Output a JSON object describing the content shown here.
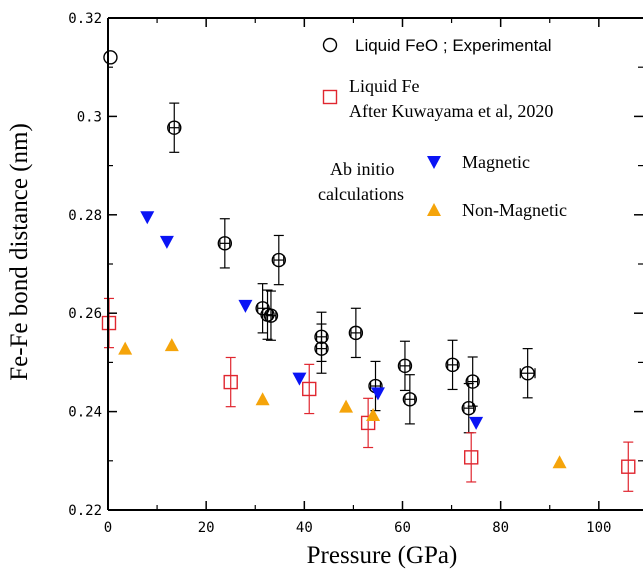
{
  "chart_data": {
    "type": "scatter",
    "xlabel": "Pressure (GPa)",
    "ylabel": "Fe-Fe bond distance (nm)",
    "xlim": [
      0,
      109
    ],
    "ylim": [
      0.22,
      0.32
    ],
    "x_ticks": [
      0,
      20,
      40,
      60,
      80,
      100
    ],
    "y_ticks": [
      0.22,
      0.24,
      0.26,
      0.28,
      0.3,
      0.32
    ],
    "x_tick_labels": [
      "0",
      "20",
      "40",
      "60",
      "80",
      "100"
    ],
    "y_tick_labels": [
      "0.22",
      "0.24",
      "0.26",
      "0.28",
      "0.3",
      "0.32"
    ],
    "grid": false,
    "legend_position": "top-right",
    "legend_group_label": [
      "Ab initio",
      "calculations"
    ],
    "series": [
      {
        "name": "Liquid FeO ; Experimental",
        "marker": "circle",
        "color": "#000000",
        "points": [
          {
            "x": 0.5,
            "y": 0.312,
            "xerr": 0,
            "yerr": 0
          },
          {
            "x": 13.5,
            "y": 0.2977,
            "xerr": 1.0,
            "yerr": 0.005
          },
          {
            "x": 23.8,
            "y": 0.2742,
            "xerr": 1.0,
            "yerr": 0.005
          },
          {
            "x": 31.5,
            "y": 0.261,
            "xerr": 1.0,
            "yerr": 0.005
          },
          {
            "x": 32.5,
            "y": 0.2597,
            "xerr": 1.0,
            "yerr": 0.005
          },
          {
            "x": 33.2,
            "y": 0.2595,
            "xerr": 1.0,
            "yerr": 0.005
          },
          {
            "x": 34.8,
            "y": 0.2708,
            "xerr": 1.0,
            "yerr": 0.005
          },
          {
            "x": 43.5,
            "y": 0.2552,
            "xerr": 1.0,
            "yerr": 0.005
          },
          {
            "x": 43.5,
            "y": 0.2528,
            "xerr": 1.0,
            "yerr": 0.005
          },
          {
            "x": 50.5,
            "y": 0.256,
            "xerr": 1.0,
            "yerr": 0.005
          },
          {
            "x": 54.5,
            "y": 0.2452,
            "xerr": 1.0,
            "yerr": 0.005
          },
          {
            "x": 60.5,
            "y": 0.2493,
            "xerr": 1.0,
            "yerr": 0.005
          },
          {
            "x": 61.5,
            "y": 0.2425,
            "xerr": 1.0,
            "yerr": 0.005
          },
          {
            "x": 70.2,
            "y": 0.2495,
            "xerr": 1.0,
            "yerr": 0.005
          },
          {
            "x": 73.5,
            "y": 0.2407,
            "xerr": 1.0,
            "yerr": 0.005
          },
          {
            "x": 74.3,
            "y": 0.2461,
            "xerr": 1.0,
            "yerr": 0.005
          },
          {
            "x": 85.5,
            "y": 0.2478,
            "xerr": 1.5,
            "yerr": 0.005
          }
        ]
      },
      {
        "name": "Liquid Fe\nAfter Kuwayama et al, 2020",
        "marker": "square",
        "color": "#e0262f",
        "points": [
          {
            "x": 0.2,
            "y": 0.258,
            "yerr": 0.005
          },
          {
            "x": 25.0,
            "y": 0.246,
            "yerr": 0.005
          },
          {
            "x": 41.0,
            "y": 0.2446,
            "yerr": 0.005
          },
          {
            "x": 53.0,
            "y": 0.2377,
            "yerr": 0.005
          },
          {
            "x": 74.0,
            "y": 0.2307,
            "yerr": 0.005
          },
          {
            "x": 106.0,
            "y": 0.2288,
            "yerr": 0.005
          }
        ]
      },
      {
        "name": "Magnetic",
        "marker": "triangle-down",
        "color": "#0a14f5",
        "points": [
          {
            "x": 8.0,
            "y": 0.2795
          },
          {
            "x": 12.0,
            "y": 0.2745
          },
          {
            "x": 28.0,
            "y": 0.2615
          },
          {
            "x": 39.0,
            "y": 0.2467
          },
          {
            "x": 55.0,
            "y": 0.2437
          },
          {
            "x": 75.0,
            "y": 0.2377
          }
        ]
      },
      {
        "name": "Non-Magnetic",
        "marker": "triangle-up",
        "color": "#f5a40a",
        "points": [
          {
            "x": 3.5,
            "y": 0.2528
          },
          {
            "x": 13.0,
            "y": 0.2535
          },
          {
            "x": 31.5,
            "y": 0.2425
          },
          {
            "x": 48.5,
            "y": 0.241
          },
          {
            "x": 54.0,
            "y": 0.2393
          },
          {
            "x": 92.0,
            "y": 0.2297
          }
        ]
      }
    ]
  }
}
